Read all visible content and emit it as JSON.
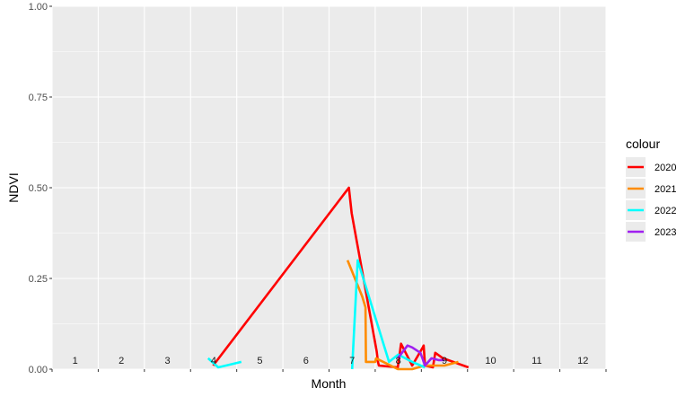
{
  "chart_data": {
    "type": "line",
    "xlabel": "Month",
    "ylabel": "NDVI",
    "xlim": [
      0.5,
      12.5
    ],
    "ylim": [
      0,
      1
    ],
    "yticks": [
      "0.00",
      "0.25",
      "0.50",
      "0.75",
      "1.00"
    ],
    "ytick_values": [
      0,
      0.25,
      0.5,
      0.75,
      1
    ],
    "month_labels": [
      "1",
      "2",
      "3",
      "4",
      "5",
      "6",
      "7",
      "8",
      "9",
      "10",
      "11",
      "12"
    ],
    "month_label_values": [
      1,
      2,
      3,
      4,
      5,
      6,
      7,
      8,
      9,
      10,
      11,
      12
    ],
    "month_label_y": 0.015,
    "grid": true,
    "legend_title": "colour",
    "legend_position": "right",
    "series": [
      {
        "name": "2020",
        "color": "#ff0000",
        "x": [
          3.99,
          6.93,
          6.99,
          7.53,
          7.55,
          7.56,
          7.58,
          7.99,
          7.99,
          8.06,
          8.3,
          8.53,
          8.55,
          8.58,
          8.75,
          8.8,
          8.97,
          9.52
        ],
        "y": [
          0.01,
          0.5,
          0.43,
          0.05,
          0.03,
          0.02,
          0.01,
          0.005,
          0.005,
          0.07,
          0.01,
          0.06,
          0.065,
          0.01,
          0.005,
          0.045,
          0.03,
          0.005
        ]
      },
      {
        "name": "2021",
        "color": "#ff8c00",
        "x": [
          6.9,
          7.22,
          7.29,
          7.3,
          7.5,
          7.52,
          7.99,
          8.3,
          8.57,
          8.62,
          8.75,
          9.0,
          9.3
        ],
        "y": [
          0.3,
          0.2,
          0.17,
          0.02,
          0.02,
          0.03,
          0.0,
          0.0,
          0.01,
          0.01,
          0.01,
          0.01,
          0.02
        ]
      },
      {
        "name": "2022",
        "color": "#00ffff",
        "x": [
          3.88,
          4.1,
          4.6,
          null,
          7.0,
          7.12,
          7.8,
          8.0,
          8.3,
          8.58
        ],
        "y": [
          0.03,
          0.005,
          0.02,
          null,
          0.0,
          0.3,
          0.02,
          0.04,
          0.02,
          0.005
        ]
      },
      {
        "name": "2023",
        "color": "#a020f0",
        "x": [
          7.99,
          8.2,
          8.3,
          8.48,
          8.58,
          8.72,
          8.87,
          9.0
        ],
        "y": [
          0.03,
          0.065,
          0.06,
          0.045,
          0.01,
          0.03,
          0.025,
          0.025
        ]
      }
    ]
  }
}
